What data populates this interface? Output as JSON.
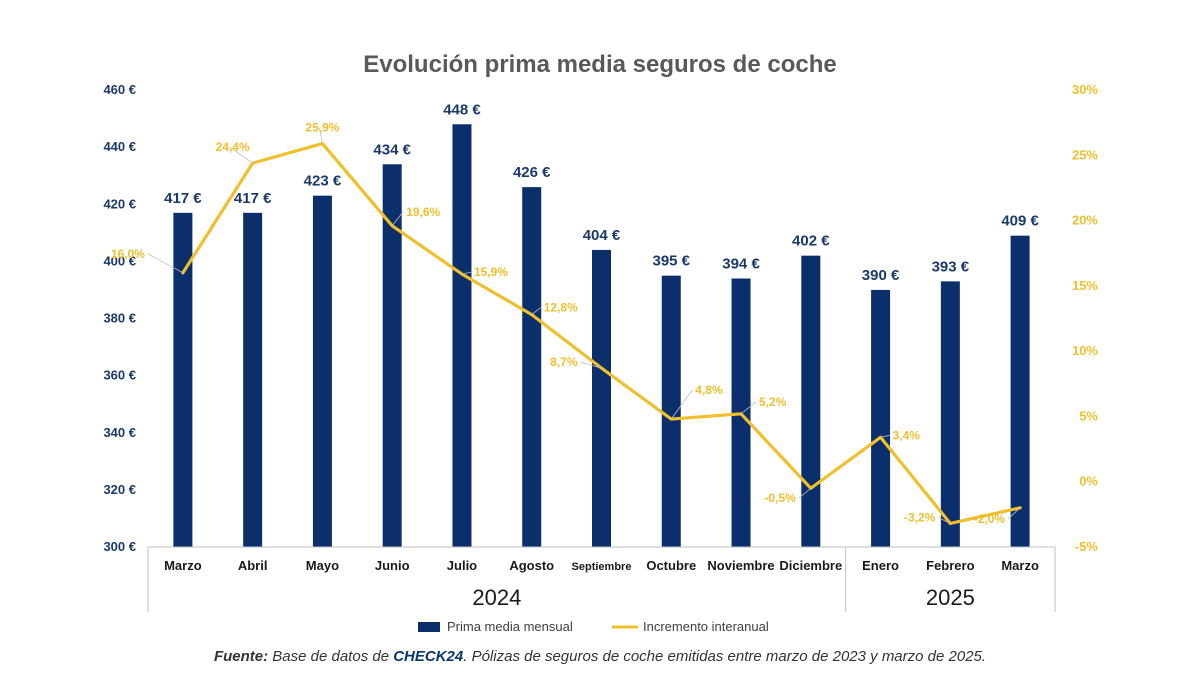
{
  "chart_data": {
    "type": "bar+line",
    "title": "Evolución prima media seguros de coche",
    "categories": [
      "Marzo",
      "Abril",
      "Mayo",
      "Junio",
      "Julio",
      "Agosto",
      "Septiembre",
      "Octubre",
      "Noviembre",
      "Diciembre",
      "Enero",
      "Febrero",
      "Marzo"
    ],
    "year_groups": [
      {
        "label": "2024",
        "count": 10
      },
      {
        "label": "2025",
        "count": 3
      }
    ],
    "series": [
      {
        "name": "Prima media mensual",
        "type": "bar",
        "axis": "left",
        "color": "#0b2f6b",
        "values": [
          417,
          417,
          423,
          434,
          448,
          426,
          404,
          395,
          394,
          402,
          390,
          393,
          409
        ],
        "labels": [
          "417 €",
          "417 €",
          "423 €",
          "434 €",
          "448 €",
          "426 €",
          "404 €",
          "395 €",
          "394 €",
          "402 €",
          "390 €",
          "393 €",
          "409 €"
        ]
      },
      {
        "name": "Incremento interanual",
        "type": "line",
        "axis": "right",
        "color": "#f0bf2c",
        "values": [
          16.0,
          24.4,
          25.9,
          19.6,
          15.9,
          12.8,
          8.7,
          4.8,
          5.2,
          -0.5,
          3.4,
          -3.2,
          -2.0
        ],
        "labels": [
          "16,0%",
          "24,4%",
          "25,9%",
          "19,6%",
          "15,9%",
          "12,8%",
          "8,7%",
          "4,8%",
          "5,2%",
          "-0,5%",
          "3,4%",
          "-3,2%",
          "-2,0%"
        ]
      }
    ],
    "left_axis": {
      "min": 300,
      "max": 460,
      "step": 20,
      "tick_labels": [
        "300 €",
        "320 €",
        "340 €",
        "360 €",
        "380 €",
        "400 €",
        "420 €",
        "440 €",
        "460 €"
      ]
    },
    "right_axis": {
      "min": -5,
      "max": 30,
      "step": 5,
      "tick_labels": [
        "-5%",
        "0%",
        "5%",
        "10%",
        "15%",
        "20%",
        "25%",
        "30%"
      ]
    },
    "grid": false,
    "legend_position": "bottom"
  },
  "footer": {
    "label": "Fuente:",
    "text_before": " Base de datos de ",
    "brand": "CHECK24",
    "text_after": ". Pólizas de seguros de coche emitidas entre marzo de 2023 y marzo de 2025."
  }
}
